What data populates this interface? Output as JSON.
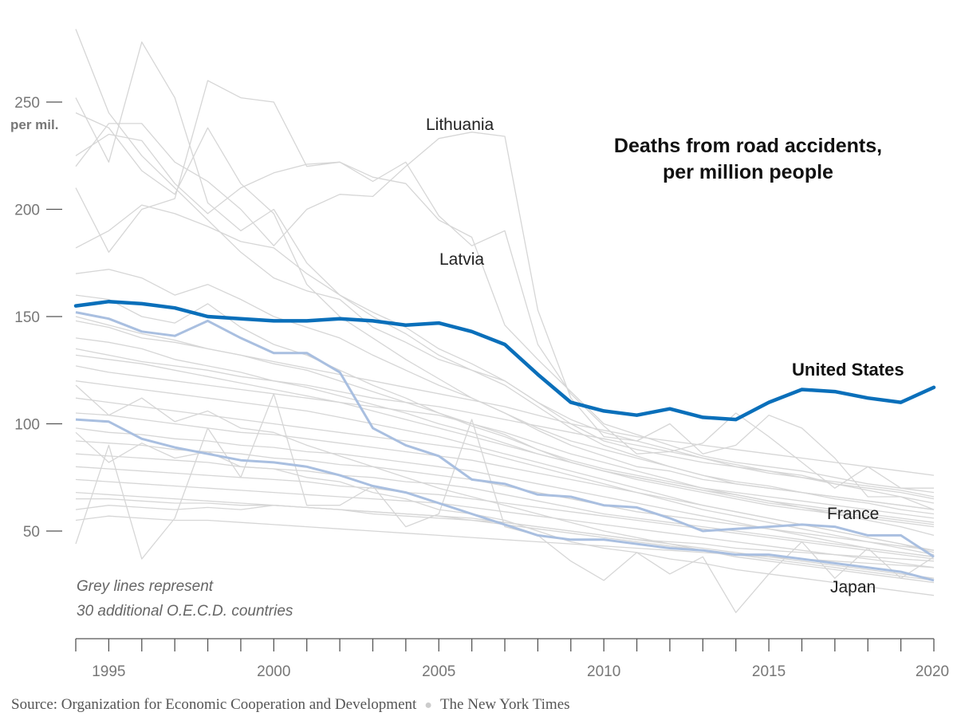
{
  "chart_data": {
    "type": "line",
    "title_lines": [
      "Deaths from road accidents,",
      "per million people"
    ],
    "y_unit": "per mil.",
    "ylim": [
      0,
      285
    ],
    "xlim": [
      1994,
      2020
    ],
    "y_ticks": [
      50,
      100,
      150,
      200,
      250
    ],
    "x_ticks": [
      1995,
      2000,
      2005,
      2010,
      2015,
      2020
    ],
    "note_lines": [
      "Grey lines represent",
      "30 additional O.E.C.D. countries"
    ],
    "colors": {
      "highlight": "#0a6fba",
      "secondary": "#a9bfe0",
      "background": "#d6d6d6",
      "axis": "#555555"
    },
    "x": [
      1994,
      1995,
      1996,
      1997,
      1998,
      1999,
      2000,
      2001,
      2002,
      2003,
      2004,
      2005,
      2006,
      2007,
      2008,
      2009,
      2010,
      2011,
      2012,
      2013,
      2014,
      2015,
      2016,
      2017,
      2018,
      2019,
      2020
    ],
    "series": [
      {
        "name": "United States",
        "role": "highlight",
        "values": [
          155,
          157,
          156,
          154,
          150,
          149,
          148,
          148,
          149,
          148,
          146,
          147,
          143,
          137,
          123,
          110,
          106,
          104,
          107,
          103,
          102,
          110,
          116,
          115,
          112,
          110,
          117
        ]
      },
      {
        "name": "France",
        "role": "secondary",
        "values": [
          152,
          149,
          143,
          141,
          148,
          140,
          133,
          133,
          124,
          98,
          90,
          85,
          74,
          72,
          67,
          66,
          62,
          61,
          56,
          50,
          51,
          52,
          53,
          52,
          48,
          48,
          38
        ]
      },
      {
        "name": "Japan",
        "role": "secondary",
        "values": [
          102,
          101,
          93,
          89,
          86,
          83,
          82,
          80,
          76,
          71,
          68,
          63,
          58,
          53,
          48,
          46,
          46,
          44,
          42,
          41,
          39,
          39,
          37,
          35,
          33,
          31,
          27
        ]
      },
      {
        "name": "Lithuania",
        "role": "background",
        "values": [
          220,
          240,
          240,
          222,
          213,
          200,
          183,
          200,
          207,
          206,
          220,
          233,
          236,
          234,
          153,
          112,
          94,
          92,
          100,
          86,
          90,
          104,
          98,
          84,
          66,
          66,
          60
        ]
      },
      {
        "name": "Latvia",
        "role": "background",
        "values": [
          225,
          235,
          232,
          212,
          198,
          210,
          217,
          221,
          222,
          213,
          222,
          197,
          183,
          190,
          137,
          114,
          99,
          86,
          87,
          91,
          105,
          94,
          82,
          70,
          80,
          70,
          70
        ]
      },
      {
        "name": "",
        "role": "background",
        "values": [
          284,
          245,
          225,
          210,
          195,
          180,
          168,
          162,
          158,
          145,
          138,
          130,
          125,
          120,
          110,
          100,
          92,
          88,
          85,
          82,
          80,
          78,
          76,
          72,
          70,
          68,
          65
        ]
      },
      {
        "name": "",
        "role": "background",
        "values": [
          252,
          222,
          278,
          252,
          203,
          190,
          200,
          175,
          160,
          150,
          142,
          132,
          125,
          118,
          108,
          98,
          90,
          85,
          80,
          76,
          72,
          70,
          68,
          65,
          63,
          60,
          58
        ]
      },
      {
        "name": "",
        "role": "background",
        "values": [
          210,
          180,
          200,
          205,
          260,
          252,
          250,
          220,
          222,
          215,
          212,
          195,
          187,
          146,
          130,
          115,
          100,
          95,
          90,
          85,
          82,
          80,
          78,
          75,
          72,
          70,
          68
        ]
      },
      {
        "name": "",
        "role": "background",
        "values": [
          245,
          238,
          218,
          207,
          238,
          212,
          198,
          165,
          150,
          140,
          130,
          121,
          112,
          105,
          97,
          90,
          85,
          80,
          78,
          74,
          72,
          70,
          68,
          66,
          64,
          62,
          60
        ]
      },
      {
        "name": "",
        "role": "background",
        "values": [
          182,
          190,
          202,
          198,
          192,
          185,
          182,
          170,
          160,
          152,
          145,
          135,
          128,
          120,
          110,
          102,
          96,
          92,
          88,
          84,
          80,
          77,
          75,
          73,
          71,
          69,
          66
        ]
      },
      {
        "name": "",
        "role": "background",
        "values": [
          170,
          172,
          168,
          160,
          165,
          158,
          150,
          145,
          140,
          132,
          125,
          118,
          112,
          105,
          98,
          92,
          88,
          84,
          80,
          76,
          73,
          71,
          68,
          66,
          64,
          62,
          60
        ]
      },
      {
        "name": "",
        "role": "background",
        "values": [
          160,
          158,
          150,
          147,
          156,
          145,
          137,
          132,
          125,
          118,
          112,
          105,
          100,
          95,
          88,
          82,
          78,
          75,
          72,
          69,
          67,
          64,
          62,
          60,
          58,
          56,
          54
        ]
      },
      {
        "name": "",
        "role": "background",
        "values": [
          148,
          145,
          140,
          138,
          135,
          132,
          128,
          125,
          120,
          115,
          110,
          105,
          99,
          94,
          88,
          83,
          79,
          76,
          73,
          70,
          68,
          66,
          64,
          62,
          60,
          58,
          56
        ]
      },
      {
        "name": "",
        "role": "background",
        "values": [
          140,
          138,
          135,
          130,
          127,
          124,
          120,
          117,
          113,
          109,
          105,
          100,
          96,
          91,
          86,
          82,
          78,
          75,
          72,
          69,
          66,
          63,
          61,
          59,
          57,
          55,
          53
        ]
      },
      {
        "name": "",
        "role": "background",
        "values": [
          132,
          130,
          128,
          125,
          122,
          119,
          116,
          113,
          110,
          106,
          102,
          98,
          94,
          90,
          86,
          82,
          78,
          74,
          71,
          68,
          65,
          62,
          60,
          58,
          56,
          54,
          52
        ]
      },
      {
        "name": "",
        "role": "background",
        "values": [
          127,
          124,
          122,
          120,
          118,
          116,
          114,
          112,
          110,
          108,
          106,
          104,
          100,
          96,
          91,
          86,
          82,
          78,
          74,
          70,
          67,
          64,
          61,
          58,
          55,
          52,
          48
        ]
      },
      {
        "name": "",
        "role": "background",
        "values": [
          120,
          118,
          116,
          114,
          112,
          110,
          108,
          106,
          103,
          100,
          97,
          94,
          90,
          86,
          82,
          78,
          74,
          70,
          66,
          62,
          59,
          56,
          53,
          50,
          47,
          44,
          40
        ]
      },
      {
        "name": "",
        "role": "background",
        "values": [
          112,
          110,
          108,
          106,
          104,
          102,
          100,
          98,
          96,
          94,
          92,
          90,
          88,
          84,
          80,
          76,
          72,
          68,
          64,
          60,
          57,
          54,
          51,
          48,
          45,
          42,
          39
        ]
      },
      {
        "name": "",
        "role": "background",
        "values": [
          105,
          104,
          102,
          100,
          98,
          96,
          95,
          93,
          91,
          89,
          87,
          85,
          83,
          80,
          77,
          74,
          71,
          68,
          65,
          62,
          59,
          56,
          53,
          50,
          47,
          44,
          41
        ]
      },
      {
        "name": "",
        "role": "background",
        "values": [
          98,
          96,
          95,
          93,
          92,
          90,
          89,
          87,
          86,
          84,
          82,
          80,
          78,
          75,
          72,
          69,
          66,
          63,
          60,
          57,
          54,
          51,
          48,
          45,
          42,
          40,
          38
        ]
      },
      {
        "name": "",
        "role": "background",
        "values": [
          92,
          91,
          90,
          88,
          87,
          86,
          84,
          83,
          81,
          80,
          78,
          76,
          74,
          71,
          68,
          65,
          62,
          59,
          57,
          55,
          53,
          51,
          49,
          47,
          45,
          43,
          41
        ]
      },
      {
        "name": "",
        "role": "background",
        "values": [
          86,
          85,
          84,
          83,
          82,
          80,
          79,
          78,
          76,
          75,
          73,
          72,
          70,
          67,
          64,
          61,
          58,
          56,
          54,
          52,
          50,
          48,
          46,
          44,
          42,
          40,
          38
        ]
      },
      {
        "name": "",
        "role": "background",
        "values": [
          80,
          79,
          78,
          77,
          76,
          75,
          74,
          73,
          71,
          70,
          68,
          67,
          65,
          63,
          61,
          59,
          57,
          55,
          53,
          51,
          49,
          47,
          45,
          43,
          41,
          39,
          37
        ]
      },
      {
        "name": "",
        "role": "background",
        "values": [
          74,
          73,
          72,
          71,
          70,
          69,
          68,
          67,
          66,
          65,
          64,
          63,
          61,
          59,
          57,
          55,
          53,
          51,
          49,
          47,
          45,
          43,
          41,
          39,
          37,
          35,
          33
        ]
      },
      {
        "name": "",
        "role": "background",
        "values": [
          68,
          67,
          66,
          65,
          64,
          63,
          62,
          61,
          60,
          59,
          58,
          57,
          56,
          54,
          52,
          50,
          48,
          46,
          44,
          42,
          40,
          38,
          36,
          34,
          32,
          30,
          28
        ]
      },
      {
        "name": "",
        "role": "background",
        "values": [
          65,
          65,
          64,
          63,
          63,
          62,
          62,
          61,
          60,
          59,
          58,
          57,
          55,
          53,
          51,
          49,
          47,
          45,
          43,
          41,
          39,
          37,
          35,
          33,
          31,
          29,
          27
        ]
      },
      {
        "name": "",
        "role": "background",
        "values": [
          44,
          90,
          37,
          56,
          98,
          75,
          114,
          62,
          62,
          71,
          52,
          58,
          102,
          52,
          48,
          36,
          27,
          40,
          30,
          38,
          12,
          30,
          45,
          28,
          42,
          28,
          38
        ]
      },
      {
        "name": "",
        "role": "background",
        "values": [
          96,
          82,
          91,
          84,
          87,
          80,
          79,
          75,
          73,
          68,
          65,
          60,
          58,
          55,
          50,
          45,
          42,
          40,
          37,
          35,
          32,
          30,
          28,
          26,
          24,
          22,
          20
        ]
      },
      {
        "name": "",
        "role": "background",
        "values": [
          118,
          104,
          112,
          101,
          106,
          98,
          96,
          90,
          85,
          80,
          75,
          70,
          66,
          62,
          58,
          54,
          50,
          47,
          44,
          41,
          38,
          36,
          34,
          32,
          30,
          28,
          26
        ]
      },
      {
        "name": "",
        "role": "background",
        "values": [
          150,
          146,
          142,
          139,
          135,
          132,
          129,
          126,
          123,
          120,
          117,
          114,
          111,
          108,
          104,
          100,
          97,
          94,
          92,
          90,
          88,
          86,
          84,
          82,
          80,
          78,
          76
        ]
      },
      {
        "name": "",
        "role": "background",
        "values": [
          135,
          132,
          129,
          127,
          125,
          122,
          120,
          118,
          115,
          112,
          110,
          108,
          105,
          102,
          99,
          96,
          93,
          90,
          87,
          84,
          81,
          78,
          75,
          72,
          69,
          66,
          63
        ]
      },
      {
        "name": "",
        "role": "background",
        "values": [
          60,
          62,
          61,
          60,
          61,
          60,
          62,
          61,
          60,
          58,
          57,
          56,
          55,
          54,
          52,
          50,
          48,
          46,
          45,
          44,
          42,
          41,
          40,
          39,
          38,
          37,
          36
        ]
      },
      {
        "name": "",
        "role": "background",
        "values": [
          55,
          57,
          56,
          55,
          55,
          54,
          53,
          52,
          51,
          50,
          49,
          48,
          47,
          46,
          45,
          44,
          43,
          42,
          41,
          40,
          39,
          38,
          37,
          36,
          35,
          34,
          33
        ]
      }
    ],
    "annotations": {
      "united_states": "United States",
      "france": "France",
      "japan": "Japan",
      "lithuania": "Lithuania",
      "latvia": "Latvia"
    }
  },
  "footer": {
    "source": "Source: Organization for Economic Cooperation and Development",
    "publisher": "The New York Times"
  }
}
